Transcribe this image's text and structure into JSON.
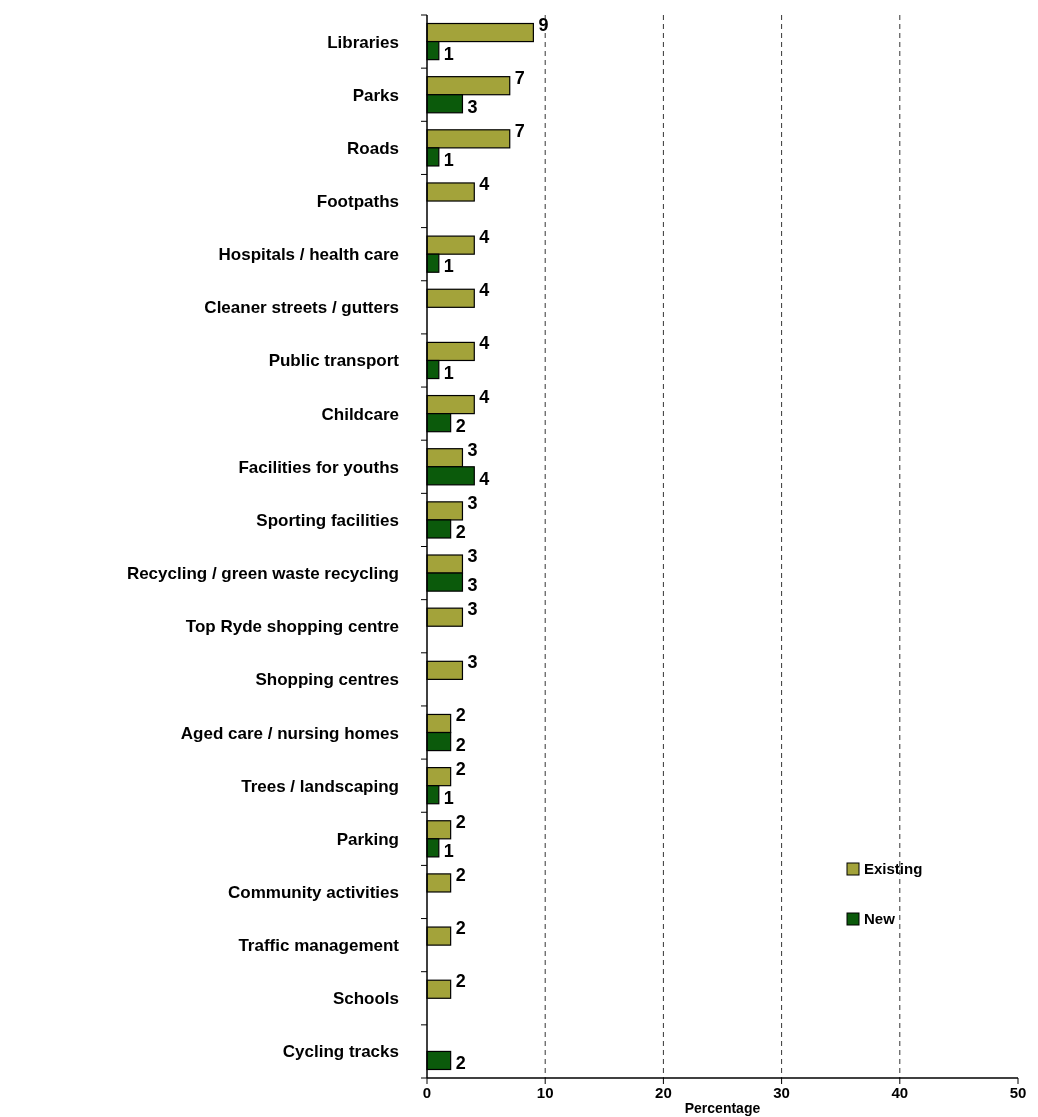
{
  "chart_data": {
    "type": "bar",
    "orientation": "horizontal",
    "xlabel": "Percentage",
    "categories": [
      "Libraries",
      "Parks",
      "Roads",
      "Footpaths",
      "Hospitals / health care",
      "Cleaner streets / gutters",
      "Public transport",
      "Childcare",
      "Facilities for youths",
      "Sporting facilities",
      "Recycling / green waste recycling",
      "Top Ryde shopping centre",
      "Shopping centres",
      "Aged care / nursing homes",
      "Trees / landscaping",
      "Parking",
      "Community activities",
      "Traffic management",
      "Schools",
      "Cycling tracks"
    ],
    "series": [
      {
        "name": "Existing",
        "color": "#a3a33a",
        "values": [
          9,
          7,
          7,
          4,
          4,
          4,
          4,
          4,
          3,
          3,
          3,
          3,
          3,
          2,
          2,
          2,
          2,
          2,
          2,
          null
        ]
      },
      {
        "name": "New",
        "color": "#0b5a0b",
        "values": [
          1,
          3,
          1,
          null,
          1,
          null,
          1,
          2,
          4,
          2,
          3,
          null,
          null,
          2,
          1,
          1,
          null,
          null,
          null,
          2
        ]
      }
    ],
    "xlim": [
      0,
      50
    ],
    "xticks": [
      0,
      10,
      20,
      30,
      40,
      50
    ],
    "grid": "x",
    "legend": "bottom right",
    "data_labels": true
  }
}
